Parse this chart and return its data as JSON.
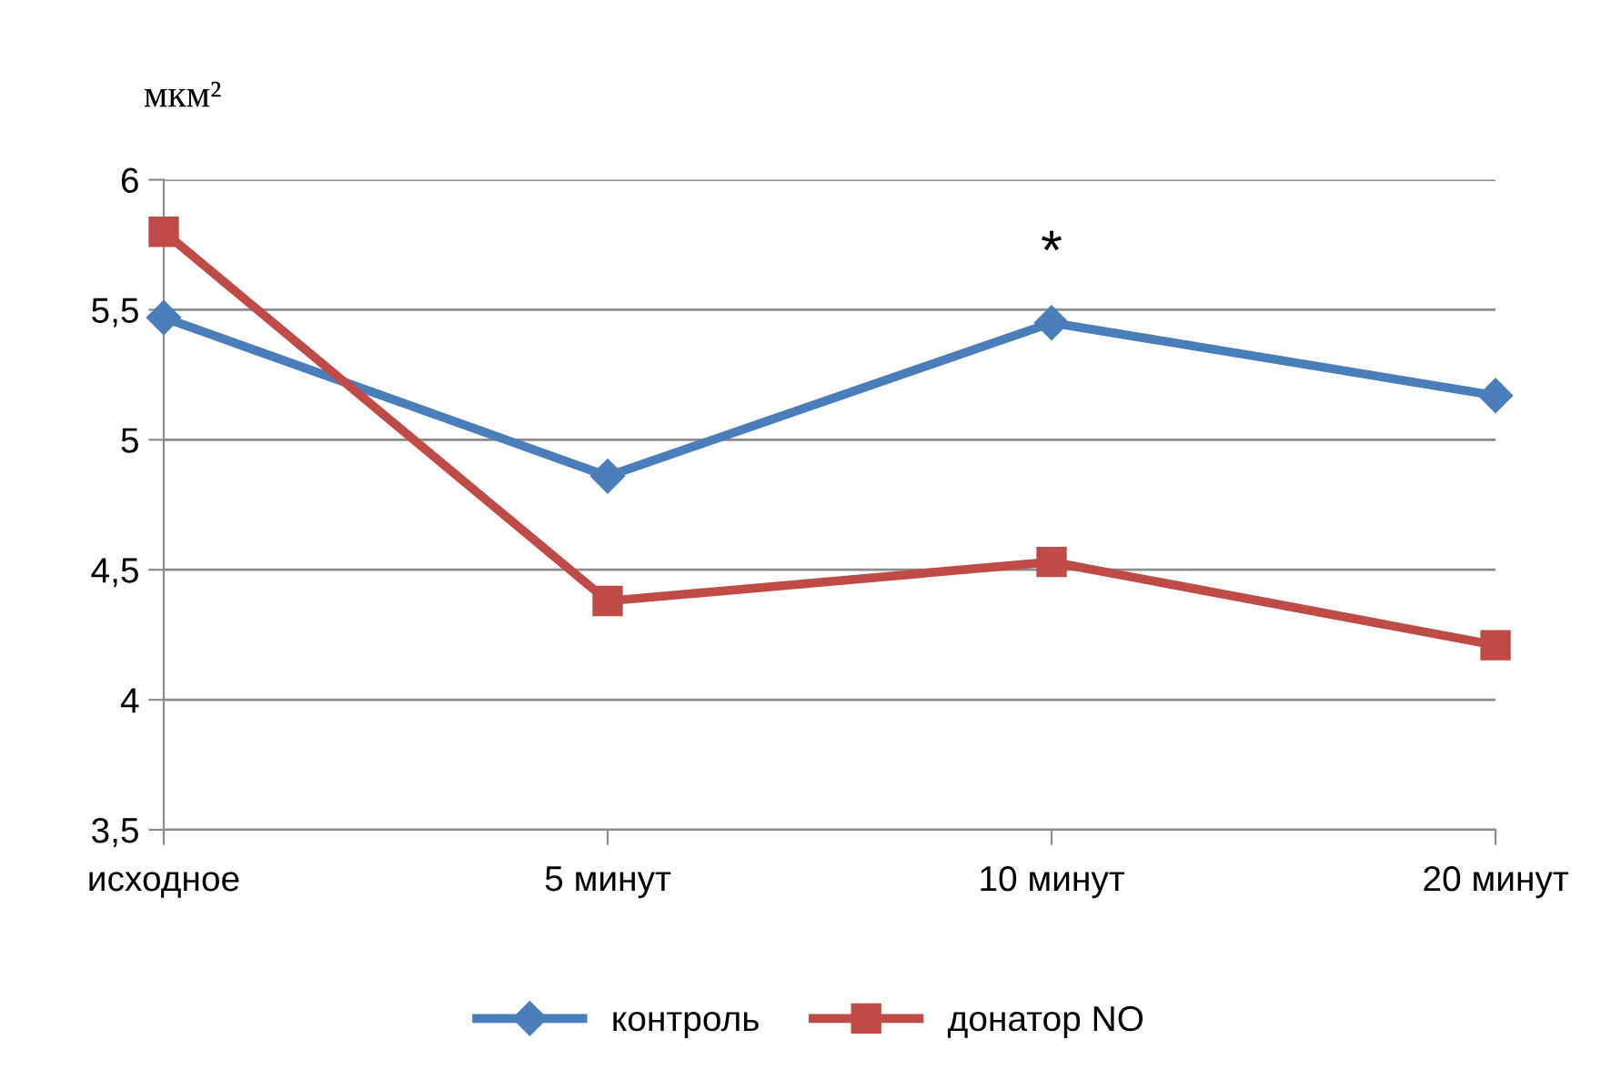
{
  "chart_data": {
    "type": "line",
    "ylabel": "мкм²",
    "categories": [
      "исходное",
      "5 минут",
      "10 минут",
      "20 минут"
    ],
    "series": [
      {
        "name": "контроль",
        "color": "#4a7ebb",
        "marker": "diamond",
        "values": [
          5.47,
          4.86,
          5.45,
          5.17
        ]
      },
      {
        "name": "донатор NO",
        "color": "#be4b48",
        "marker": "square",
        "values": [
          5.8,
          4.38,
          4.53,
          4.21
        ]
      }
    ],
    "ylim": [
      3.5,
      6
    ],
    "yticks": [
      {
        "value": 3.5,
        "label": "3,5"
      },
      4,
      {
        "value": 4.5,
        "label": "4,5"
      },
      5,
      {
        "value": 5.5,
        "label": "5,5"
      },
      6
    ],
    "grid": "y",
    "legend": "bottom",
    "line_style": "solid",
    "annotations": [
      "*"
    ]
  }
}
